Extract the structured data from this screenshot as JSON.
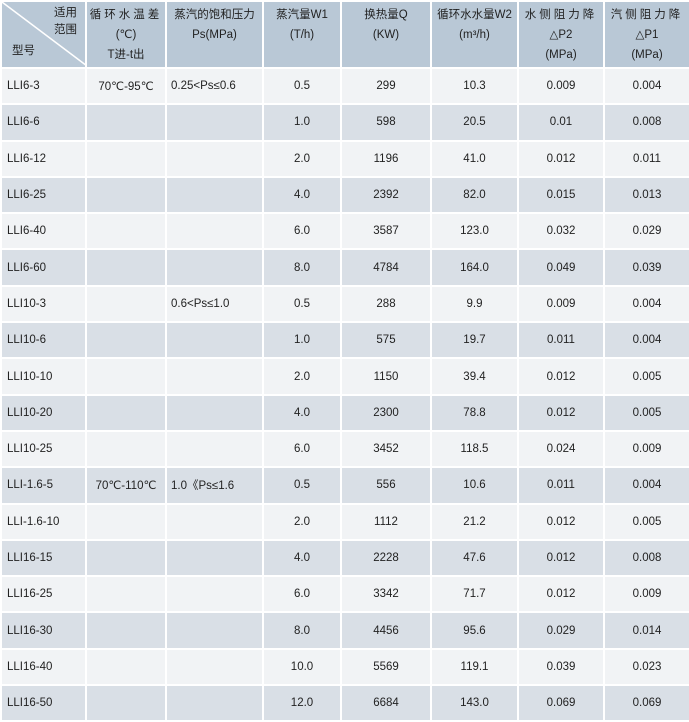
{
  "header": {
    "corner_top": "适用范围",
    "corner_top_line1": "适用",
    "corner_top_line2": "范围",
    "corner_bottom": "型号",
    "columns": [
      {
        "lines": [
          "循环水温差",
          "(℃)",
          "T进-t出"
        ]
      },
      {
        "lines": [
          "蒸汽的饱和压力",
          "Ps(MPa)"
        ]
      },
      {
        "lines": [
          "蒸汽量W1",
          "(T/h)"
        ]
      },
      {
        "lines": [
          "换热量Q",
          "(KW)"
        ]
      },
      {
        "lines": [
          "循环水水量W2",
          "(m³/h)"
        ]
      },
      {
        "lines": [
          "水侧阻力降",
          "△P2",
          "(MPa)"
        ]
      },
      {
        "lines": [
          "汽侧阻力降",
          "△P1",
          "(MPa)"
        ]
      }
    ]
  },
  "rows": [
    [
      "LLI6-3",
      "70℃-95℃",
      "0.25<Ps≤0.6",
      "0.5",
      "299",
      "10.3",
      "0.009",
      "0.004"
    ],
    [
      "LLI6-6",
      "",
      "",
      "1.0",
      "598",
      "20.5",
      "0.01",
      "0.008"
    ],
    [
      "LLI6-12",
      "",
      "",
      "2.0",
      "1196",
      "41.0",
      "0.012",
      "0.011"
    ],
    [
      "LLI6-25",
      "",
      "",
      "4.0",
      "2392",
      "82.0",
      "0.015",
      "0.013"
    ],
    [
      "LLI6-40",
      "",
      "",
      "6.0",
      "3587",
      "123.0",
      "0.032",
      "0.029"
    ],
    [
      "LLI6-60",
      "",
      "",
      "8.0",
      "4784",
      "164.0",
      "0.049",
      "0.039"
    ],
    [
      "LLI10-3",
      "",
      "0.6<Ps≤1.0",
      "0.5",
      "288",
      "9.9",
      "0.009",
      "0.004"
    ],
    [
      "LLI10-6",
      "",
      "",
      "1.0",
      "575",
      "19.7",
      "0.011",
      "0.004"
    ],
    [
      "LLI10-10",
      "",
      "",
      "2.0",
      "1150",
      "39.4",
      "0.012",
      "0.005"
    ],
    [
      "LLI10-20",
      "",
      "",
      "4.0",
      "2300",
      "78.8",
      "0.012",
      "0.005"
    ],
    [
      "LLI10-25",
      "",
      "",
      "6.0",
      "3452",
      "118.5",
      "0.024",
      "0.009"
    ],
    [
      "LLI-1.6-5",
      "70℃-110℃",
      "1.0《Ps≤1.6",
      "0.5",
      "556",
      "10.6",
      "0.011",
      "0.004"
    ],
    [
      "LLI-1.6-10",
      "",
      "",
      "2.0",
      "1112",
      "21.2",
      "0.012",
      "0.005"
    ],
    [
      "LLI16-15",
      "",
      "",
      "4.0",
      "2228",
      "47.6",
      "0.012",
      "0.008"
    ],
    [
      "LLI16-25",
      "",
      "",
      "6.0",
      "3342",
      "71.7",
      "0.012",
      "0.009"
    ],
    [
      "LLI16-30",
      "",
      "",
      "8.0",
      "4456",
      "95.6",
      "0.029",
      "0.014"
    ],
    [
      "LLI16-40",
      "",
      "",
      "10.0",
      "5569",
      "119.1",
      "0.039",
      "0.023"
    ],
    [
      "LLI16-50",
      "",
      "",
      "12.0",
      "6684",
      "143.0",
      "0.069",
      "0.069"
    ]
  ],
  "colors": {
    "header_bg": "#b9c8d6",
    "row_light": "#f1f3f5",
    "row_dark": "#d9dfe6"
  }
}
